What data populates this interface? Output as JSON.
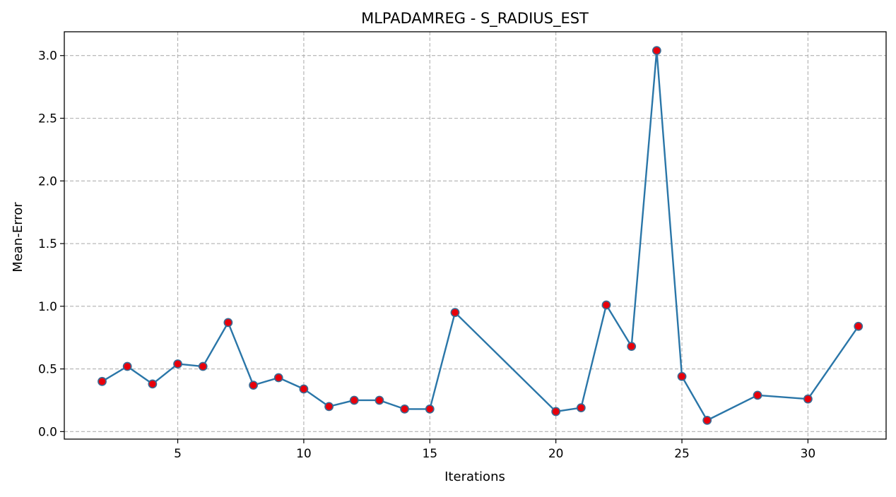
{
  "chart_data": {
    "type": "line",
    "title": "MLPADAMREG - S_RADIUS_EST",
    "xlabel": "Iterations",
    "ylabel": "Mean-Error",
    "xlim": [
      0.5,
      33.1
    ],
    "ylim": [
      -0.06,
      3.19
    ],
    "x_ticks": [
      5,
      10,
      15,
      20,
      25,
      30
    ],
    "y_ticks": [
      0.0,
      0.5,
      1.0,
      1.5,
      2.0,
      2.5,
      3.0
    ],
    "x_tick_labels": [
      "5",
      "10",
      "15",
      "20",
      "25",
      "30"
    ],
    "y_tick_labels": [
      "0.0",
      "0.5",
      "1.0",
      "1.5",
      "2.0",
      "2.5",
      "3.0"
    ],
    "grid": true,
    "grid_style": "dashed",
    "line_color": "#2a76a8",
    "marker_fill": "#e8000b",
    "marker_edge": "#3a6b94",
    "series": [
      {
        "x": [
          2,
          3,
          4,
          5,
          6,
          7,
          8,
          9,
          10,
          11,
          12,
          13,
          14,
          15,
          16,
          20,
          21,
          22,
          23,
          24,
          25,
          26,
          28,
          30,
          32
        ],
        "values": [
          0.4,
          0.52,
          0.38,
          0.54,
          0.52,
          0.87,
          0.37,
          0.43,
          0.34,
          0.2,
          0.25,
          0.25,
          0.18,
          0.18,
          0.95,
          0.16,
          0.19,
          1.01,
          0.68,
          3.04,
          0.44,
          0.09,
          0.29,
          0.26,
          0.84
        ]
      }
    ]
  }
}
